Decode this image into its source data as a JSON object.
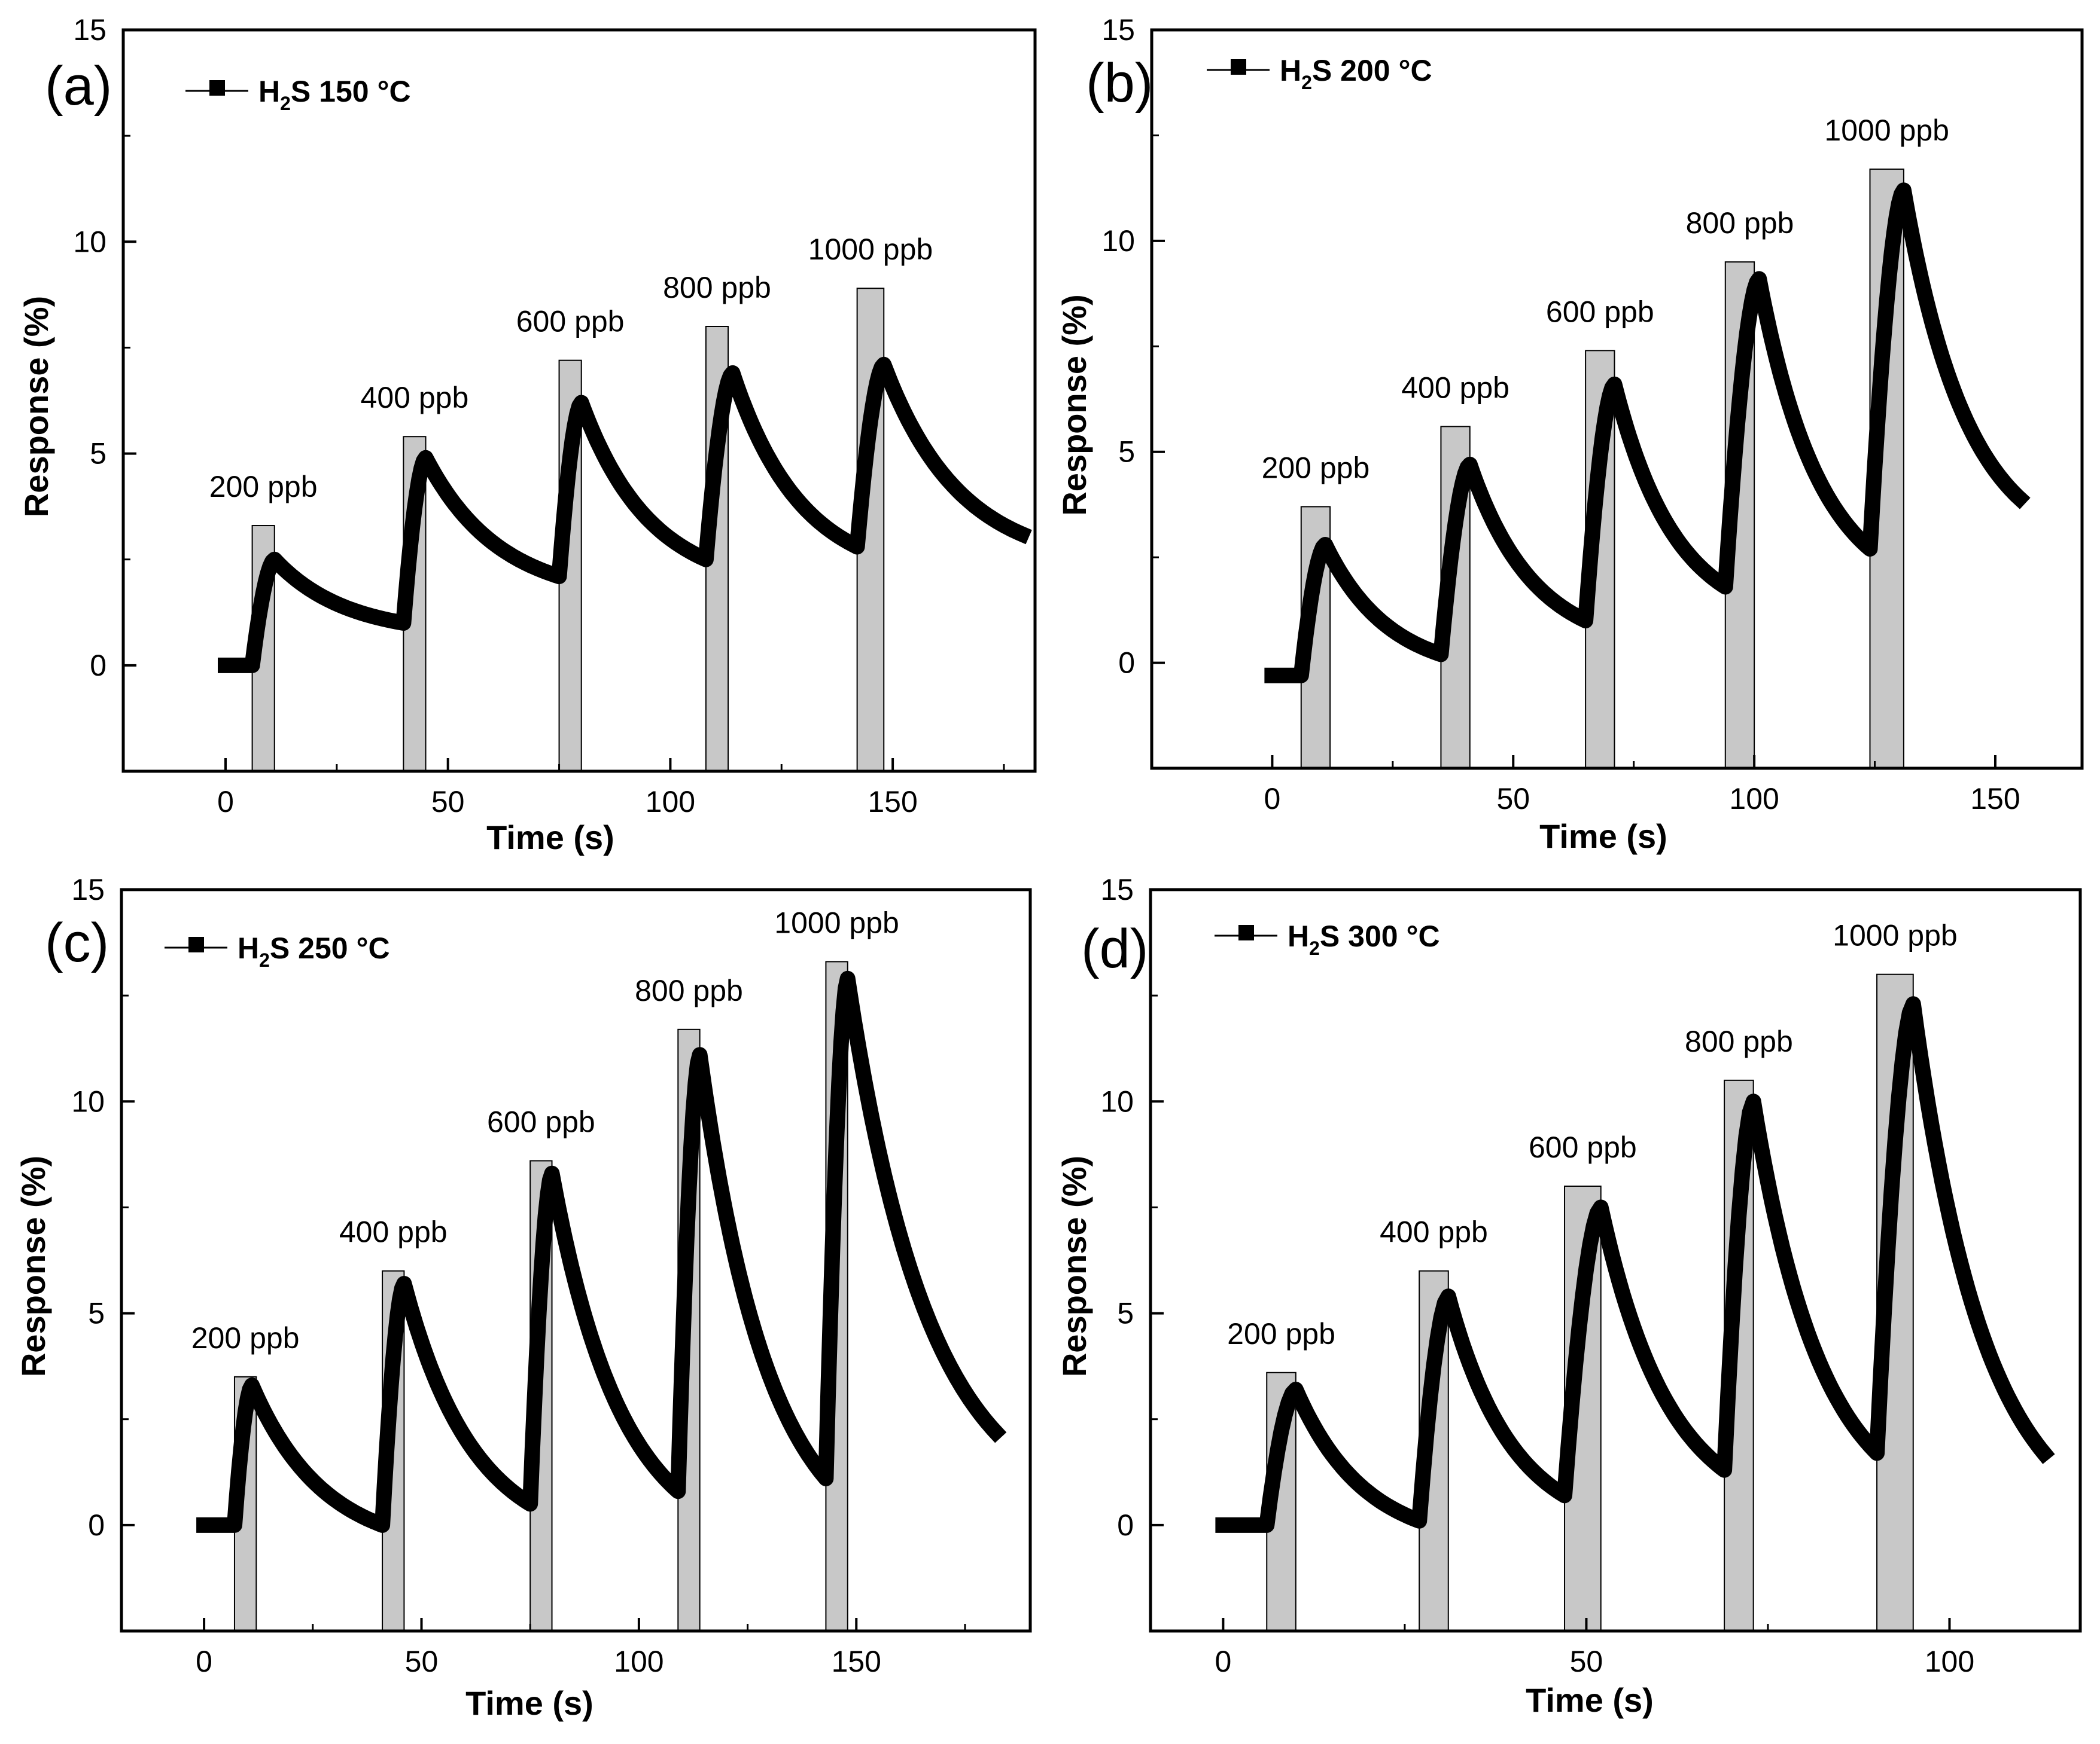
{
  "figure": {
    "axis_label_x": "Time (s)",
    "axis_label_y": "Response (%)",
    "bar_fill": "#c8c8c8",
    "line_color": "#000000"
  },
  "chart_data": [
    {
      "panel": "(a)",
      "type": "line",
      "legend": {
        "gas": "H",
        "sub": "2",
        "gas_tail": "S",
        "temp": "150",
        "unit": "°C"
      },
      "xlabel": "Time (s)",
      "ylabel": "Response (%)",
      "xlim": [
        -23,
        182
      ],
      "ylim": [
        -2.5,
        15
      ],
      "xticks": [
        0,
        50,
        100,
        150
      ],
      "yticks": [
        0,
        5,
        10,
        15
      ],
      "pulses": [
        {
          "label": "200 ppb",
          "x_start": 6,
          "x_end": 11,
          "height": 3.3
        },
        {
          "label": "400 ppb",
          "x_start": 40,
          "x_end": 45,
          "height": 5.4
        },
        {
          "label": "600 ppb",
          "x_start": 75,
          "x_end": 80,
          "height": 7.2
        },
        {
          "label": "800 ppb",
          "x_start": 108,
          "x_end": 113,
          "height": 8.0
        },
        {
          "label": "1000 ppb",
          "x_start": 142,
          "x_end": 148,
          "height": 8.9
        }
      ],
      "series": [
        {
          "name": "H2S 150 °C",
          "baseline_start": 0.0,
          "x_start": 0,
          "x_end": 179,
          "cycles": [
            {
              "on": 6,
              "peak_x": 11,
              "peak": 2.5,
              "end_x": 40,
              "end": 1.0
            },
            {
              "on": 40,
              "peak_x": 45,
              "peak": 4.9,
              "end_x": 75,
              "end": 2.1
            },
            {
              "on": 75,
              "peak_x": 80,
              "peak": 6.2,
              "end_x": 108,
              "end": 2.5
            },
            {
              "on": 108,
              "peak_x": 114,
              "peak": 6.9,
              "end_x": 142,
              "end": 2.8
            },
            {
              "on": 142,
              "peak_x": 148,
              "peak": 7.1,
              "end_x": 179,
              "end": 3.1
            }
          ]
        }
      ]
    },
    {
      "panel": "(b)",
      "type": "line",
      "legend": {
        "gas": "H",
        "sub": "2",
        "gas_tail": "S",
        "temp": "200",
        "unit": "°C"
      },
      "xlabel": "Time (s)",
      "ylabel": "Response (%)",
      "xlim": [
        -25,
        168
      ],
      "ylim": [
        -2.5,
        15
      ],
      "xticks": [
        0,
        50,
        100,
        150
      ],
      "yticks": [
        0,
        5,
        10,
        15
      ],
      "pulses": [
        {
          "label": "200 ppb",
          "x_start": 6,
          "x_end": 12,
          "height": 3.7
        },
        {
          "label": "400 ppb",
          "x_start": 35,
          "x_end": 41,
          "height": 5.6
        },
        {
          "label": "600 ppb",
          "x_start": 65,
          "x_end": 71,
          "height": 7.4
        },
        {
          "label": "800 ppb",
          "x_start": 94,
          "x_end": 100,
          "height": 9.5
        },
        {
          "label": "1000 ppb",
          "x_start": 124,
          "x_end": 131,
          "height": 11.7
        }
      ],
      "series": [
        {
          "name": "H2S 200 °C",
          "baseline_start": -0.3,
          "x_start": 0,
          "x_end": 155,
          "cycles": [
            {
              "on": 6,
              "peak_x": 11,
              "peak": 2.8,
              "end_x": 35,
              "end": 0.2
            },
            {
              "on": 35,
              "peak_x": 41,
              "peak": 4.7,
              "end_x": 65,
              "end": 1.0
            },
            {
              "on": 65,
              "peak_x": 71,
              "peak": 6.6,
              "end_x": 94,
              "end": 1.8
            },
            {
              "on": 94,
              "peak_x": 101,
              "peak": 9.1,
              "end_x": 124,
              "end": 2.7
            },
            {
              "on": 124,
              "peak_x": 131,
              "peak": 11.2,
              "end_x": 155,
              "end": 3.9
            }
          ]
        }
      ]
    },
    {
      "panel": "(c)",
      "type": "line",
      "legend": {
        "gas": "H",
        "sub": "2",
        "gas_tail": "S",
        "temp": "250",
        "unit": "°C"
      },
      "xlabel": "Time (s)",
      "ylabel": "Response (%)",
      "xlim": [
        -19,
        190
      ],
      "ylim": [
        -2.5,
        15
      ],
      "xticks": [
        0,
        50,
        100,
        150
      ],
      "yticks": [
        0,
        5,
        10,
        15
      ],
      "pulses": [
        {
          "label": "200 ppb",
          "x_start": 7,
          "x_end": 12,
          "height": 3.5
        },
        {
          "label": "400 ppb",
          "x_start": 41,
          "x_end": 46,
          "height": 6.0
        },
        {
          "label": "600 ppb",
          "x_start": 75,
          "x_end": 80,
          "height": 8.6
        },
        {
          "label": "800 ppb",
          "x_start": 109,
          "x_end": 114,
          "height": 11.7
        },
        {
          "label": "1000 ppb",
          "x_start": 143,
          "x_end": 148,
          "height": 13.3
        }
      ],
      "series": [
        {
          "name": "H2S 250 °C",
          "baseline_start": 0.0,
          "x_start": 0,
          "x_end": 182,
          "cycles": [
            {
              "on": 7,
              "peak_x": 11,
              "peak": 3.3,
              "end_x": 41,
              "end": 0.0
            },
            {
              "on": 41,
              "peak_x": 46,
              "peak": 5.7,
              "end_x": 75,
              "end": 0.5
            },
            {
              "on": 75,
              "peak_x": 80,
              "peak": 8.3,
              "end_x": 109,
              "end": 0.8
            },
            {
              "on": 109,
              "peak_x": 114,
              "peak": 11.1,
              "end_x": 143,
              "end": 1.1
            },
            {
              "on": 143,
              "peak_x": 148,
              "peak": 12.9,
              "end_x": 182,
              "end": 2.2
            }
          ]
        }
      ]
    },
    {
      "panel": "(d)",
      "type": "line",
      "legend": {
        "gas": "H",
        "sub": "2",
        "gas_tail": "S",
        "temp": "300",
        "unit": "°C"
      },
      "xlabel": "Time (s)",
      "ylabel": "Response (%)",
      "xlim": [
        -10,
        118
      ],
      "ylim": [
        -2.5,
        15
      ],
      "xticks": [
        0,
        50,
        100
      ],
      "yticks": [
        0,
        5,
        10,
        15
      ],
      "pulses": [
        {
          "label": "200 ppb",
          "x_start": 6,
          "x_end": 10,
          "height": 3.6
        },
        {
          "label": "400 ppb",
          "x_start": 27,
          "x_end": 31,
          "height": 6.0
        },
        {
          "label": "600 ppb",
          "x_start": 47,
          "x_end": 52,
          "height": 8.0
        },
        {
          "label": "800 ppb",
          "x_start": 69,
          "x_end": 73,
          "height": 10.5
        },
        {
          "label": "1000 ppb",
          "x_start": 90,
          "x_end": 95,
          "height": 13.0
        }
      ],
      "series": [
        {
          "name": "H2S 300 °C",
          "baseline_start": 0.0,
          "x_start": 0,
          "x_end": 113,
          "cycles": [
            {
              "on": 6,
              "peak_x": 10,
              "peak": 3.2,
              "end_x": 27,
              "end": 0.1
            },
            {
              "on": 27,
              "peak_x": 31,
              "peak": 5.4,
              "end_x": 47,
              "end": 0.7
            },
            {
              "on": 47,
              "peak_x": 52,
              "peak": 7.5,
              "end_x": 69,
              "end": 1.3
            },
            {
              "on": 69,
              "peak_x": 73,
              "peak": 10.0,
              "end_x": 90,
              "end": 1.7
            },
            {
              "on": 90,
              "peak_x": 95,
              "peak": 12.3,
              "end_x": 113,
              "end": 1.7
            }
          ]
        }
      ]
    }
  ]
}
